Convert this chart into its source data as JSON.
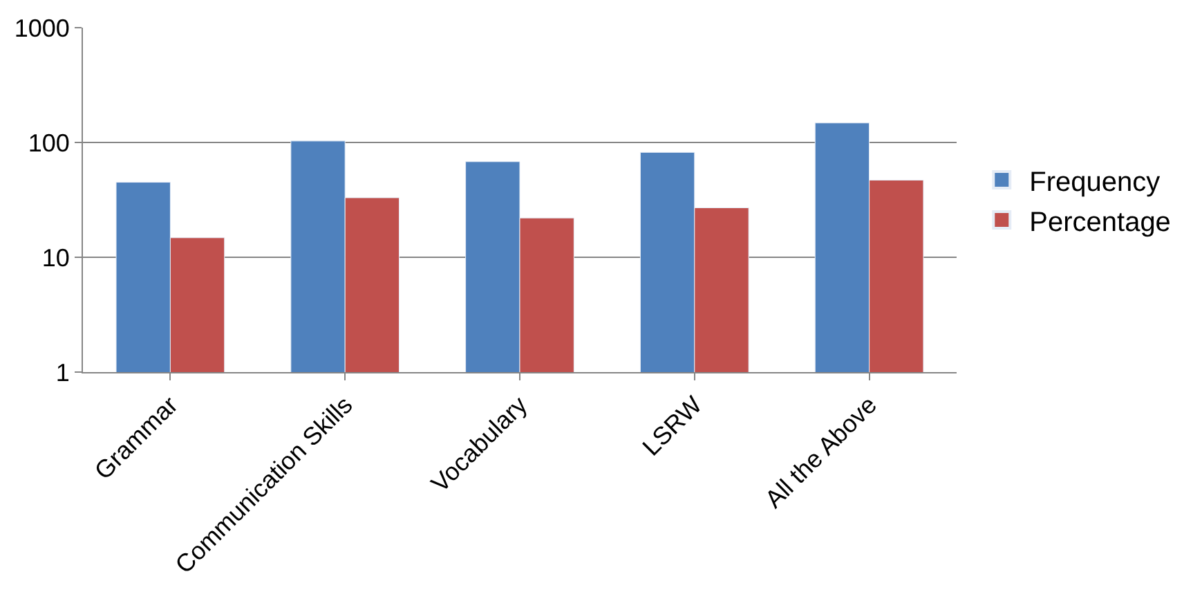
{
  "chart_data": {
    "type": "bar",
    "categories": [
      "Grammar",
      "Communication Skills",
      "Vocabulary",
      "LSRW",
      "All the Above"
    ],
    "series": [
      {
        "name": "Frequency",
        "color": "#4f81bd",
        "values": [
          45,
          103,
          68,
          82,
          148
        ]
      },
      {
        "name": "Percentage",
        "color": "#c0504d",
        "values": [
          14.8,
          33,
          22,
          27,
          47
        ]
      }
    ],
    "log": "y",
    "ylim": [
      1,
      1000
    ],
    "yticks": [
      1,
      10,
      100,
      1000
    ],
    "grid": "y",
    "legend": "right"
  }
}
